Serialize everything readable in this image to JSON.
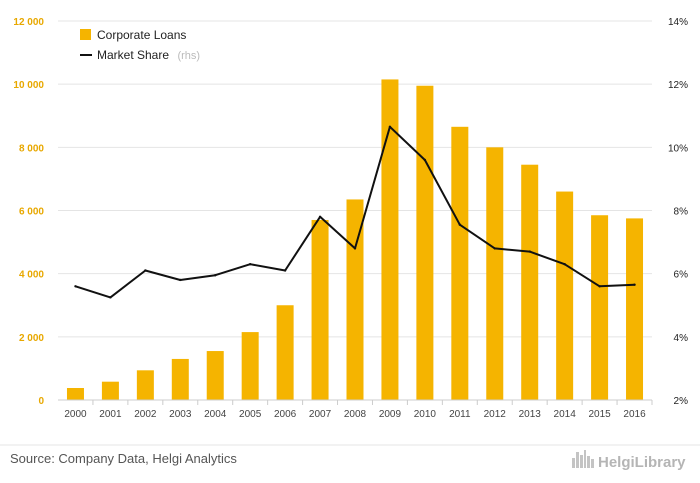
{
  "chart_data": {
    "type": "bar+line",
    "categories": [
      "2000",
      "2001",
      "2002",
      "2003",
      "2004",
      "2005",
      "2006",
      "2007",
      "2008",
      "2009",
      "2010",
      "2011",
      "2012",
      "2013",
      "2014",
      "2015",
      "2016"
    ],
    "series": [
      {
        "name": "Corporate Loans",
        "type": "bar",
        "axis": "left",
        "values": [
          380,
          580,
          940,
          1300,
          1550,
          2150,
          3000,
          5700,
          6350,
          10150,
          9950,
          8650,
          8000,
          7450,
          6600,
          5850,
          5750
        ]
      },
      {
        "name": "Market Share",
        "type": "line",
        "axis": "right",
        "values": [
          5.6,
          5.25,
          6.1,
          5.8,
          5.95,
          6.3,
          6.1,
          7.8,
          6.8,
          10.65,
          9.6,
          7.55,
          6.8,
          6.7,
          6.3,
          5.6,
          5.65
        ]
      }
    ],
    "legend_rhs_note": "(rhs)",
    "y_left": {
      "lim": [
        0,
        12000
      ],
      "ticks": [
        "0",
        "2 000",
        "4 000",
        "6 000",
        "8 000",
        "10 000",
        "12 000"
      ]
    },
    "y_right": {
      "lim": [
        2,
        14
      ],
      "ticks": [
        "2%",
        "4%",
        "6%",
        "8%",
        "10%",
        "12%",
        "14%"
      ]
    },
    "legend_position": "top-left",
    "grid": "horizontal",
    "colors": {
      "bar": "#f5b400",
      "line": "#111111",
      "grid": "#e4e4e4",
      "left_axis_text": "#e8a800"
    }
  },
  "footer": {
    "source": "Source: Company Data, Helgi Analytics",
    "brand": "HelgiLibrary"
  }
}
